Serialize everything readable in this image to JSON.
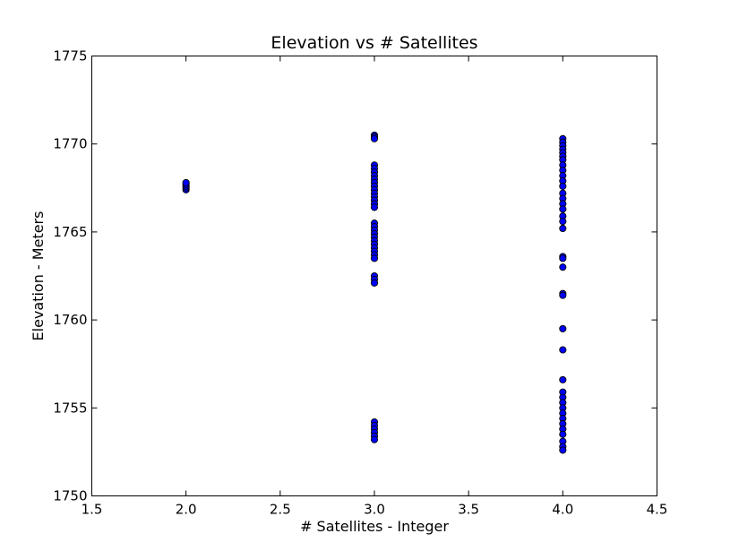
{
  "chart_data": {
    "type": "scatter",
    "title": "Elevation vs # Satellites",
    "xlabel": "# Satellites - Integer",
    "ylabel": "Elevation - Meters",
    "xlim": [
      1.5,
      4.5
    ],
    "ylim": [
      1750,
      1775
    ],
    "xticks": [
      1.5,
      2.0,
      2.5,
      3.0,
      3.5,
      4.0,
      4.5
    ],
    "xtick_labels": [
      "1.5",
      "2.0",
      "2.5",
      "3.0",
      "3.5",
      "4.0",
      "4.5"
    ],
    "yticks": [
      1750,
      1755,
      1760,
      1765,
      1770,
      1775
    ],
    "ytick_labels": [
      "1750",
      "1755",
      "1760",
      "1765",
      "1770",
      "1775"
    ],
    "grid": false,
    "marker_color": "#0000ff",
    "marker_edge_color": "#000000",
    "points": [
      {
        "x": 2,
        "y": 1767.4
      },
      {
        "x": 2,
        "y": 1767.5
      },
      {
        "x": 2,
        "y": 1767.6
      },
      {
        "x": 2,
        "y": 1767.7
      },
      {
        "x": 2,
        "y": 1767.8
      },
      {
        "x": 3,
        "y": 1770.5
      },
      {
        "x": 3,
        "y": 1770.4
      },
      {
        "x": 3,
        "y": 1770.3
      },
      {
        "x": 3,
        "y": 1768.8
      },
      {
        "x": 3,
        "y": 1768.6
      },
      {
        "x": 3,
        "y": 1768.4
      },
      {
        "x": 3,
        "y": 1768.2
      },
      {
        "x": 3,
        "y": 1768.0
      },
      {
        "x": 3,
        "y": 1767.8
      },
      {
        "x": 3,
        "y": 1767.6
      },
      {
        "x": 3,
        "y": 1767.4
      },
      {
        "x": 3,
        "y": 1767.2
      },
      {
        "x": 3,
        "y": 1767.0
      },
      {
        "x": 3,
        "y": 1766.8
      },
      {
        "x": 3,
        "y": 1766.6
      },
      {
        "x": 3,
        "y": 1766.4
      },
      {
        "x": 3,
        "y": 1765.5
      },
      {
        "x": 3,
        "y": 1765.3
      },
      {
        "x": 3,
        "y": 1765.1
      },
      {
        "x": 3,
        "y": 1764.9
      },
      {
        "x": 3,
        "y": 1764.7
      },
      {
        "x": 3,
        "y": 1764.5
      },
      {
        "x": 3,
        "y": 1764.3
      },
      {
        "x": 3,
        "y": 1764.1
      },
      {
        "x": 3,
        "y": 1763.9
      },
      {
        "x": 3,
        "y": 1763.7
      },
      {
        "x": 3,
        "y": 1763.5
      },
      {
        "x": 3,
        "y": 1762.5
      },
      {
        "x": 3,
        "y": 1762.3
      },
      {
        "x": 3,
        "y": 1762.1
      },
      {
        "x": 3,
        "y": 1754.2
      },
      {
        "x": 3,
        "y": 1754.0
      },
      {
        "x": 3,
        "y": 1753.8
      },
      {
        "x": 3,
        "y": 1753.6
      },
      {
        "x": 3,
        "y": 1753.4
      },
      {
        "x": 3,
        "y": 1753.2
      },
      {
        "x": 4,
        "y": 1770.3
      },
      {
        "x": 4,
        "y": 1770.1
      },
      {
        "x": 4,
        "y": 1769.9
      },
      {
        "x": 4,
        "y": 1769.7
      },
      {
        "x": 4,
        "y": 1769.5
      },
      {
        "x": 4,
        "y": 1769.3
      },
      {
        "x": 4,
        "y": 1769.1
      },
      {
        "x": 4,
        "y": 1768.8
      },
      {
        "x": 4,
        "y": 1768.5
      },
      {
        "x": 4,
        "y": 1768.2
      },
      {
        "x": 4,
        "y": 1767.9
      },
      {
        "x": 4,
        "y": 1767.6
      },
      {
        "x": 4,
        "y": 1767.2
      },
      {
        "x": 4,
        "y": 1766.9
      },
      {
        "x": 4,
        "y": 1766.6
      },
      {
        "x": 4,
        "y": 1766.3
      },
      {
        "x": 4,
        "y": 1765.9
      },
      {
        "x": 4,
        "y": 1765.6
      },
      {
        "x": 4,
        "y": 1765.2
      },
      {
        "x": 4,
        "y": 1763.6
      },
      {
        "x": 4,
        "y": 1763.5
      },
      {
        "x": 4,
        "y": 1763.0
      },
      {
        "x": 4,
        "y": 1761.5
      },
      {
        "x": 4,
        "y": 1761.4
      },
      {
        "x": 4,
        "y": 1759.5
      },
      {
        "x": 4,
        "y": 1758.3
      },
      {
        "x": 4,
        "y": 1756.6
      },
      {
        "x": 4,
        "y": 1755.9
      },
      {
        "x": 4,
        "y": 1755.6
      },
      {
        "x": 4,
        "y": 1755.3
      },
      {
        "x": 4,
        "y": 1755.0
      },
      {
        "x": 4,
        "y": 1754.7
      },
      {
        "x": 4,
        "y": 1754.4
      },
      {
        "x": 4,
        "y": 1754.1
      },
      {
        "x": 4,
        "y": 1753.8
      },
      {
        "x": 4,
        "y": 1753.5
      },
      {
        "x": 4,
        "y": 1753.1
      },
      {
        "x": 4,
        "y": 1752.8
      },
      {
        "x": 4,
        "y": 1752.6
      }
    ]
  }
}
